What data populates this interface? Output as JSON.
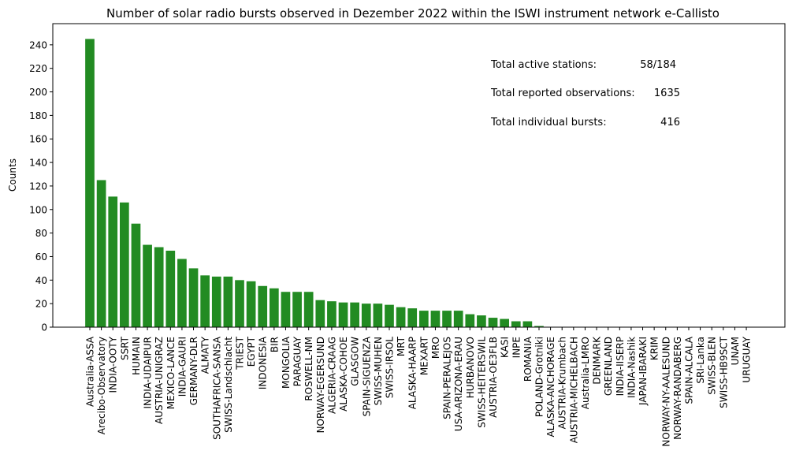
{
  "chart_data": {
    "type": "bar",
    "title": "Number of solar radio bursts observed in Dezember 2022 within the ISWI instrument network e-Callisto",
    "xlabel": "",
    "ylabel": "Counts",
    "ylim": [
      0,
      258
    ],
    "yticks": [
      0,
      20,
      40,
      60,
      80,
      100,
      120,
      140,
      160,
      180,
      200,
      220,
      240
    ],
    "grid": false,
    "bar_color": "#228B22",
    "categories": [
      "Australia-ASSA",
      "Arecibo-Observatory",
      "INDIA-OOTY",
      "SSRT",
      "HUMAIN",
      "INDIA-UDAIPUR",
      "AUSTRIA-UNIGRAZ",
      "MEXICO-LANCE",
      "INDIA-GAURI",
      "GERMANY-DLR",
      "ALMATY",
      "SOUTHAFRICA-SANSA",
      "SWISS-Landschlacht",
      "TRIEST",
      "EGYPT",
      "INDONESIA",
      "BIR",
      "MONGOLIA",
      "PARAGUAY",
      "ROSWELL-NM",
      "NORWAY-EGERSUND",
      "ALGERIA-CRAAG",
      "ALASKA-COHOE",
      "GLASGOW",
      "SPAIN-SIGUENZA",
      "SWISS-MUHEN",
      "SWISS-IRSOL",
      "MRT",
      "ALASKA-HAARP",
      "MEXART",
      "MRO",
      "SPAIN-PERALEJOS",
      "USA-ARIZONA-ERAU",
      "HURBANOVO",
      "SWISS-HEITERSWIL",
      "AUSTRIA-OE3FLB",
      "KASI",
      "INPE",
      "ROMANIA",
      "POLAND-Grotniki",
      "ALASKA-ANCHORAGE",
      "AUSTRIA-Krumbach",
      "AUSTRIA-MICHELBACH",
      "Australia-LMRO",
      "DENMARK",
      "GREENLAND",
      "INDIA-IISERP",
      "INDIA-Nashik",
      "JAPAN-IBARAKI",
      "KRIM",
      "NORWAY-NY-AALESUND",
      "NORWAY-RANDABERG",
      "SPAIN-ALCALA",
      "SRI-Lanka",
      "SWISS-BLEN",
      "SWISS-HB9SCT",
      "UNAM",
      "URUGUAY"
    ],
    "values": [
      245,
      125,
      111,
      106,
      88,
      70,
      68,
      65,
      58,
      50,
      44,
      43,
      43,
      40,
      39,
      35,
      33,
      30,
      30,
      30,
      23,
      22,
      21,
      21,
      20,
      20,
      19,
      17,
      16,
      14,
      14,
      14,
      14,
      11,
      10,
      8,
      7,
      5,
      5,
      1,
      0,
      0,
      0,
      0,
      0,
      0,
      0,
      0,
      0,
      0,
      0,
      0,
      0,
      0,
      0,
      0,
      0,
      0
    ],
    "annotations": [
      {
        "label": "Total active stations:",
        "value": "58/184"
      },
      {
        "label": "Total reported observations:",
        "value": "1635"
      },
      {
        "label": "Total individual bursts:",
        "value": "416"
      }
    ]
  }
}
